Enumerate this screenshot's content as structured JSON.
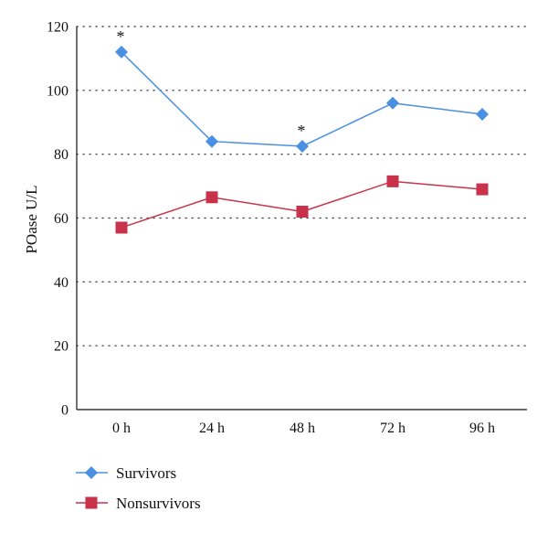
{
  "chart_data": {
    "type": "line",
    "title": "",
    "xlabel": "",
    "ylabel": "POase U/L",
    "categories": [
      "0 h",
      "24 h",
      "48 h",
      "72 h",
      "96 h"
    ],
    "ylim": [
      0,
      120
    ],
    "yticks": [
      0,
      20,
      40,
      60,
      80,
      100,
      120
    ],
    "grid": "horizontal dotted",
    "legend_position": "bottom-left",
    "series": [
      {
        "name": "Survivors",
        "values": [
          112,
          84,
          82.5,
          96,
          92.5
        ],
        "color": "#4a90e2",
        "marker": "diamond"
      },
      {
        "name": "Nonsurvivors",
        "values": [
          57,
          66.5,
          62,
          71.5,
          69
        ],
        "color": "#c8324b",
        "marker": "square"
      }
    ],
    "annotations": [
      {
        "text": "*",
        "x": "0 h",
        "series": "Survivors"
      },
      {
        "text": "*",
        "x": "48 h",
        "series": "Survivors"
      }
    ]
  }
}
